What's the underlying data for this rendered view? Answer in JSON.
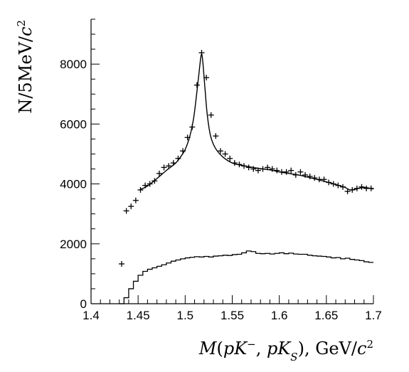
{
  "chart_data": {
    "type": "scatter",
    "xlabel": {
      "parts": [
        {
          "t": "M",
          "it": true
        },
        {
          "t": "(",
          "it": false
        },
        {
          "t": "pK",
          "it": true
        },
        {
          "t": "−",
          "sup": true
        },
        {
          "t": ", ",
          "it": false
        },
        {
          "t": "pK",
          "it": true
        },
        {
          "t": "S",
          "sub": true,
          "it": true
        },
        {
          "t": "), GeV/",
          "it": false
        },
        {
          "t": "c",
          "it": true
        },
        {
          "t": "2",
          "sup": true
        }
      ]
    },
    "ylabel": {
      "parts": [
        {
          "t": "N/5MeV/",
          "it": false
        },
        {
          "t": "c",
          "it": true
        },
        {
          "t": "2",
          "sup": true
        }
      ]
    },
    "xlim": [
      1.4,
      1.7
    ],
    "ylim": [
      0,
      9500
    ],
    "x_ticks": [
      "1.4",
      "1.45",
      "1.5",
      "1.55",
      "1.6",
      "1.65",
      "1.7"
    ],
    "x_tick_values": [
      1.4,
      1.45,
      1.5,
      1.55,
      1.6,
      1.65,
      1.7
    ],
    "y_ticks": [
      "0",
      "2000",
      "4000",
      "6000",
      "8000"
    ],
    "y_tick_values": [
      0,
      2000,
      4000,
      6000,
      8000
    ],
    "grid": false,
    "series": [
      {
        "kind": "points",
        "points": [
          [
            1.4325,
            1330
          ],
          [
            1.4375,
            3100
          ],
          [
            1.4425,
            3250
          ],
          [
            1.4475,
            3450
          ],
          [
            1.4525,
            3800
          ],
          [
            1.4575,
            3950
          ],
          [
            1.4625,
            4000
          ],
          [
            1.4675,
            4100
          ],
          [
            1.4725,
            4350
          ],
          [
            1.4775,
            4550
          ],
          [
            1.4825,
            4600
          ],
          [
            1.4875,
            4700
          ],
          [
            1.4925,
            4850
          ],
          [
            1.4975,
            5100
          ],
          [
            1.5025,
            5550
          ],
          [
            1.5075,
            5900
          ],
          [
            1.5125,
            7300
          ],
          [
            1.5175,
            8380
          ],
          [
            1.5225,
            7550
          ],
          [
            1.5275,
            6300
          ],
          [
            1.5325,
            5600
          ],
          [
            1.5375,
            5100
          ],
          [
            1.5425,
            5000
          ],
          [
            1.5475,
            4850
          ],
          [
            1.5525,
            4700
          ],
          [
            1.5575,
            4650
          ],
          [
            1.5625,
            4600
          ],
          [
            1.5675,
            4550
          ],
          [
            1.5725,
            4500
          ],
          [
            1.5775,
            4450
          ],
          [
            1.5825,
            4500
          ],
          [
            1.5875,
            4550
          ],
          [
            1.5925,
            4500
          ],
          [
            1.5975,
            4450
          ],
          [
            1.6025,
            4400
          ],
          [
            1.6075,
            4400
          ],
          [
            1.6125,
            4450
          ],
          [
            1.6175,
            4300
          ],
          [
            1.6225,
            4400
          ],
          [
            1.6275,
            4300
          ],
          [
            1.6325,
            4250
          ],
          [
            1.6375,
            4200
          ],
          [
            1.6425,
            4150
          ],
          [
            1.6475,
            4150
          ],
          [
            1.6525,
            4050
          ],
          [
            1.6575,
            4000
          ],
          [
            1.6625,
            3950
          ],
          [
            1.6675,
            3900
          ],
          [
            1.6725,
            3750
          ],
          [
            1.6775,
            3800
          ],
          [
            1.6825,
            3850
          ],
          [
            1.6875,
            3900
          ],
          [
            1.6925,
            3850
          ],
          [
            1.6975,
            3850
          ]
        ]
      },
      {
        "kind": "fit_curve",
        "points": [
          [
            1.4525,
            3820
          ],
          [
            1.46,
            3930
          ],
          [
            1.47,
            4180
          ],
          [
            1.48,
            4450
          ],
          [
            1.49,
            4700
          ],
          [
            1.495,
            4900
          ],
          [
            1.5,
            5150
          ],
          [
            1.505,
            5600
          ],
          [
            1.509,
            6200
          ],
          [
            1.512,
            6950
          ],
          [
            1.5145,
            7650
          ],
          [
            1.517,
            8300
          ],
          [
            1.5185,
            8150
          ],
          [
            1.521,
            7200
          ],
          [
            1.5235,
            6300
          ],
          [
            1.527,
            5600
          ],
          [
            1.532,
            5200
          ],
          [
            1.54,
            4900
          ],
          [
            1.55,
            4700
          ],
          [
            1.56,
            4620
          ],
          [
            1.57,
            4560
          ],
          [
            1.58,
            4510
          ],
          [
            1.59,
            4470
          ],
          [
            1.6,
            4400
          ],
          [
            1.61,
            4350
          ],
          [
            1.62,
            4300
          ],
          [
            1.63,
            4230
          ],
          [
            1.64,
            4150
          ],
          [
            1.65,
            4070
          ],
          [
            1.66,
            3980
          ],
          [
            1.67,
            3880
          ],
          [
            1.675,
            3800
          ],
          [
            1.68,
            3820
          ],
          [
            1.69,
            3880
          ],
          [
            1.7,
            3830
          ]
        ]
      },
      {
        "kind": "histogram",
        "bin_width": 0.005,
        "bins": [
          [
            1.4325,
            0
          ],
          [
            1.4375,
            200
          ],
          [
            1.4425,
            500
          ],
          [
            1.4475,
            750
          ],
          [
            1.4525,
            950
          ],
          [
            1.4575,
            1080
          ],
          [
            1.4625,
            1150
          ],
          [
            1.4675,
            1200
          ],
          [
            1.4725,
            1250
          ],
          [
            1.4775,
            1300
          ],
          [
            1.4825,
            1360
          ],
          [
            1.4875,
            1420
          ],
          [
            1.4925,
            1460
          ],
          [
            1.4975,
            1500
          ],
          [
            1.5025,
            1530
          ],
          [
            1.5075,
            1550
          ],
          [
            1.5125,
            1570
          ],
          [
            1.5175,
            1560
          ],
          [
            1.5225,
            1580
          ],
          [
            1.5275,
            1560
          ],
          [
            1.5325,
            1590
          ],
          [
            1.5375,
            1600
          ],
          [
            1.5425,
            1620
          ],
          [
            1.5475,
            1610
          ],
          [
            1.5525,
            1640
          ],
          [
            1.5575,
            1650
          ],
          [
            1.5625,
            1700
          ],
          [
            1.5675,
            1760
          ],
          [
            1.5725,
            1740
          ],
          [
            1.5775,
            1680
          ],
          [
            1.5825,
            1670
          ],
          [
            1.5875,
            1680
          ],
          [
            1.5925,
            1660
          ],
          [
            1.5975,
            1680
          ],
          [
            1.6025,
            1700
          ],
          [
            1.6075,
            1670
          ],
          [
            1.6125,
            1690
          ],
          [
            1.6175,
            1660
          ],
          [
            1.6225,
            1650
          ],
          [
            1.6275,
            1650
          ],
          [
            1.6325,
            1620
          ],
          [
            1.6375,
            1600
          ],
          [
            1.6425,
            1590
          ],
          [
            1.6475,
            1580
          ],
          [
            1.6525,
            1560
          ],
          [
            1.6575,
            1530
          ],
          [
            1.6625,
            1540
          ],
          [
            1.6675,
            1500
          ],
          [
            1.6725,
            1520
          ],
          [
            1.6775,
            1480
          ],
          [
            1.6825,
            1460
          ],
          [
            1.6875,
            1440
          ],
          [
            1.6925,
            1400
          ],
          [
            1.6975,
            1380
          ]
        ]
      }
    ],
    "colors": {
      "axis": "#000000",
      "data": "#000000",
      "background": "#ffffff"
    }
  }
}
